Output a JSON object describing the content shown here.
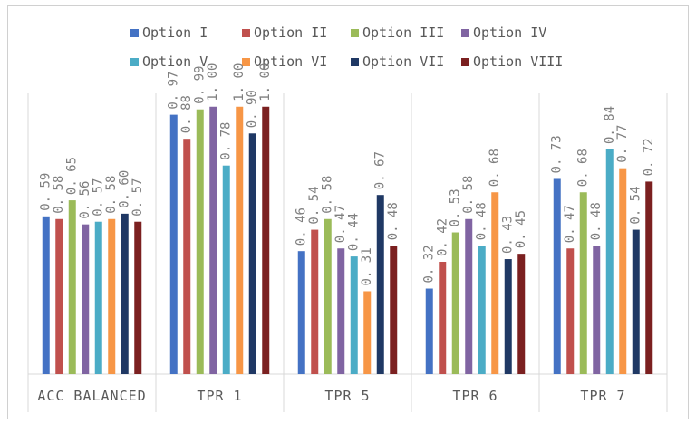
{
  "chart_data": {
    "type": "bar",
    "title": "",
    "xlabel": "",
    "ylabel": "",
    "ylim": [
      0,
      1.05
    ],
    "grid": false,
    "legend_position": "top",
    "categories": [
      "ACC BALANCED",
      "TPR 1",
      "TPR 5",
      "TPR 6",
      "TPR 7"
    ],
    "series": [
      {
        "name": "Option I",
        "color": "#4472C4",
        "values": [
          0.59,
          0.97,
          0.46,
          0.32,
          0.73
        ]
      },
      {
        "name": "Option II",
        "color": "#C0504D",
        "values": [
          0.58,
          0.88,
          0.54,
          0.42,
          0.47
        ]
      },
      {
        "name": "Option III",
        "color": "#9BBB59",
        "values": [
          0.65,
          0.99,
          0.58,
          0.53,
          0.68
        ]
      },
      {
        "name": "Option IV",
        "color": "#8064A2",
        "values": [
          0.56,
          1.0,
          0.47,
          0.58,
          0.48
        ]
      },
      {
        "name": "Option V",
        "color": "#4BACC6",
        "values": [
          0.57,
          0.78,
          0.44,
          0.48,
          0.84
        ]
      },
      {
        "name": "Option VI",
        "color": "#F79646",
        "values": [
          0.58,
          1.0,
          0.31,
          0.68,
          0.77
        ]
      },
      {
        "name": "Option VII",
        "color": "#1F3864",
        "values": [
          0.6,
          0.9,
          0.67,
          0.43,
          0.54
        ]
      },
      {
        "name": "Option VIII",
        "color": "#7B2020",
        "values": [
          0.57,
          1.0,
          0.48,
          0.45,
          0.72
        ]
      }
    ]
  }
}
